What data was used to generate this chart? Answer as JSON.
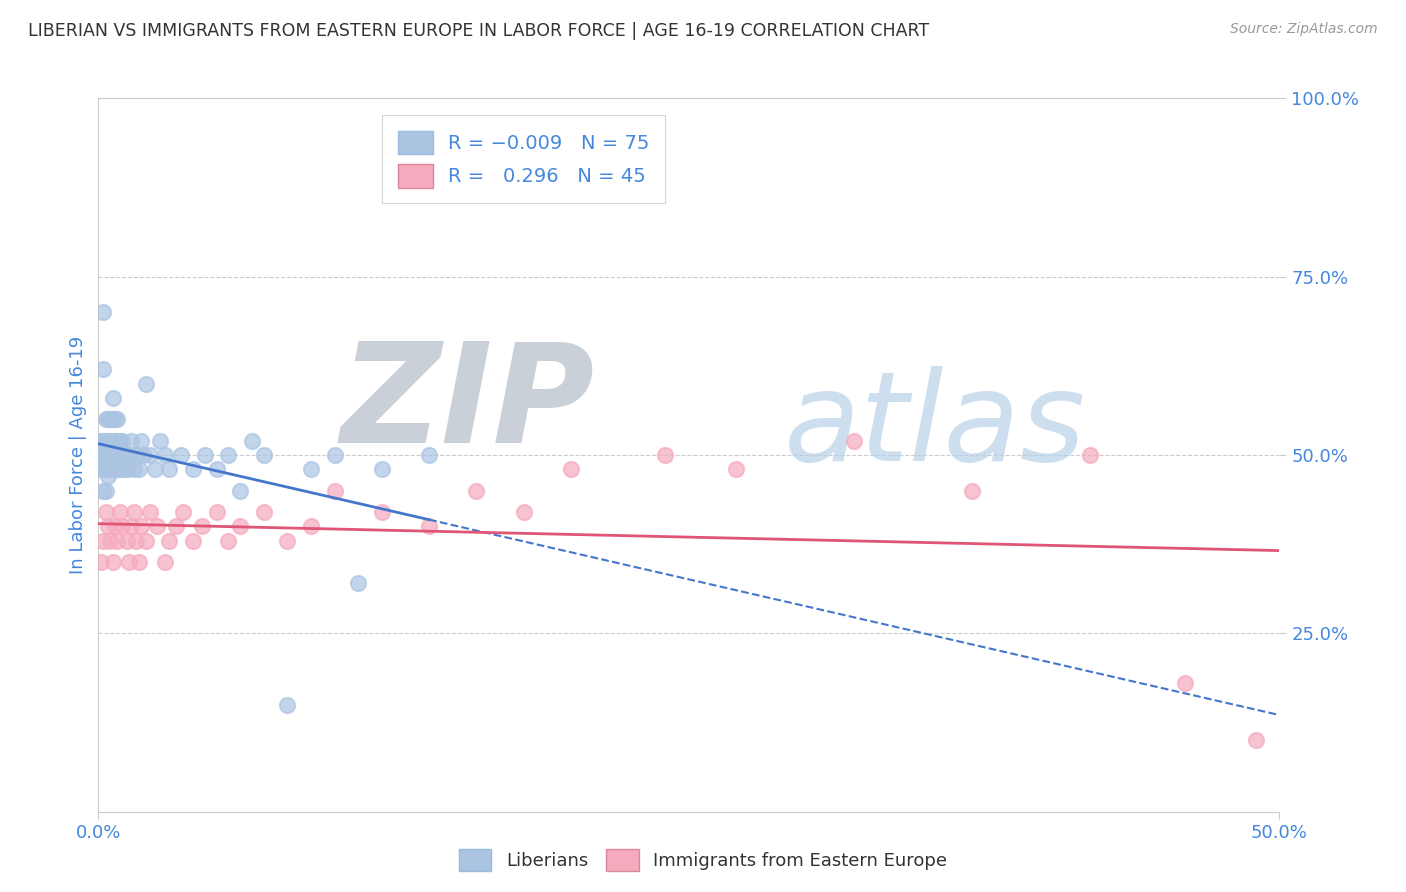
{
  "title": "LIBERIAN VS IMMIGRANTS FROM EASTERN EUROPE IN LABOR FORCE | AGE 16-19 CORRELATION CHART",
  "source": "Source: ZipAtlas.com",
  "ylabel": "In Labor Force | Age 16-19",
  "liberian_R": -0.009,
  "liberian_N": 75,
  "eastern_europe_R": 0.296,
  "eastern_europe_N": 45,
  "liberian_color": "#aac4e2",
  "eastern_europe_color": "#f5aabe",
  "liberian_line_color": "#4477cc",
  "eastern_europe_line_color": "#e05575",
  "background_color": "#ffffff",
  "grid_color": "#cccccc",
  "title_color": "#333333",
  "axis_label_color": "#4488dd",
  "legend_text_color": "#4488dd",
  "xmin": 0.0,
  "xmax": 0.5,
  "ymin": 0.0,
  "ymax": 1.0,
  "liberian_x": [
    0.001,
    0.001,
    0.001,
    0.002,
    0.002,
    0.002,
    0.002,
    0.002,
    0.003,
    0.003,
    0.003,
    0.003,
    0.003,
    0.003,
    0.004,
    0.004,
    0.004,
    0.004,
    0.004,
    0.004,
    0.005,
    0.005,
    0.005,
    0.005,
    0.005,
    0.005,
    0.006,
    0.006,
    0.006,
    0.006,
    0.007,
    0.007,
    0.007,
    0.007,
    0.007,
    0.008,
    0.008,
    0.008,
    0.008,
    0.009,
    0.009,
    0.009,
    0.01,
    0.01,
    0.011,
    0.011,
    0.012,
    0.012,
    0.013,
    0.014,
    0.015,
    0.016,
    0.017,
    0.018,
    0.019,
    0.02,
    0.022,
    0.024,
    0.026,
    0.028,
    0.03,
    0.035,
    0.04,
    0.045,
    0.05,
    0.055,
    0.06,
    0.065,
    0.07,
    0.08,
    0.09,
    0.1,
    0.11,
    0.12,
    0.14
  ],
  "liberian_y": [
    0.5,
    0.48,
    0.52,
    0.62,
    0.7,
    0.48,
    0.45,
    0.52,
    0.5,
    0.55,
    0.48,
    0.5,
    0.45,
    0.52,
    0.5,
    0.48,
    0.55,
    0.52,
    0.47,
    0.5,
    0.5,
    0.48,
    0.52,
    0.55,
    0.48,
    0.5,
    0.5,
    0.55,
    0.58,
    0.48,
    0.52,
    0.55,
    0.5,
    0.48,
    0.52,
    0.5,
    0.55,
    0.52,
    0.48,
    0.5,
    0.52,
    0.48,
    0.5,
    0.52,
    0.5,
    0.48,
    0.5,
    0.48,
    0.5,
    0.52,
    0.48,
    0.5,
    0.48,
    0.52,
    0.5,
    0.6,
    0.5,
    0.48,
    0.52,
    0.5,
    0.48,
    0.5,
    0.48,
    0.5,
    0.48,
    0.5,
    0.45,
    0.52,
    0.5,
    0.15,
    0.48,
    0.5,
    0.32,
    0.48,
    0.5
  ],
  "eastern_europe_x": [
    0.001,
    0.002,
    0.003,
    0.004,
    0.005,
    0.006,
    0.007,
    0.008,
    0.009,
    0.01,
    0.012,
    0.013,
    0.014,
    0.015,
    0.016,
    0.017,
    0.018,
    0.02,
    0.022,
    0.025,
    0.028,
    0.03,
    0.033,
    0.036,
    0.04,
    0.044,
    0.05,
    0.055,
    0.06,
    0.07,
    0.08,
    0.09,
    0.1,
    0.12,
    0.14,
    0.16,
    0.18,
    0.2,
    0.24,
    0.27,
    0.32,
    0.37,
    0.42,
    0.46,
    0.49
  ],
  "eastern_europe_y": [
    0.35,
    0.38,
    0.42,
    0.4,
    0.38,
    0.35,
    0.4,
    0.38,
    0.42,
    0.4,
    0.38,
    0.35,
    0.4,
    0.42,
    0.38,
    0.35,
    0.4,
    0.38,
    0.42,
    0.4,
    0.35,
    0.38,
    0.4,
    0.42,
    0.38,
    0.4,
    0.42,
    0.38,
    0.4,
    0.42,
    0.38,
    0.4,
    0.45,
    0.42,
    0.4,
    0.45,
    0.42,
    0.48,
    0.5,
    0.48,
    0.52,
    0.45,
    0.5,
    0.18,
    0.1
  ]
}
